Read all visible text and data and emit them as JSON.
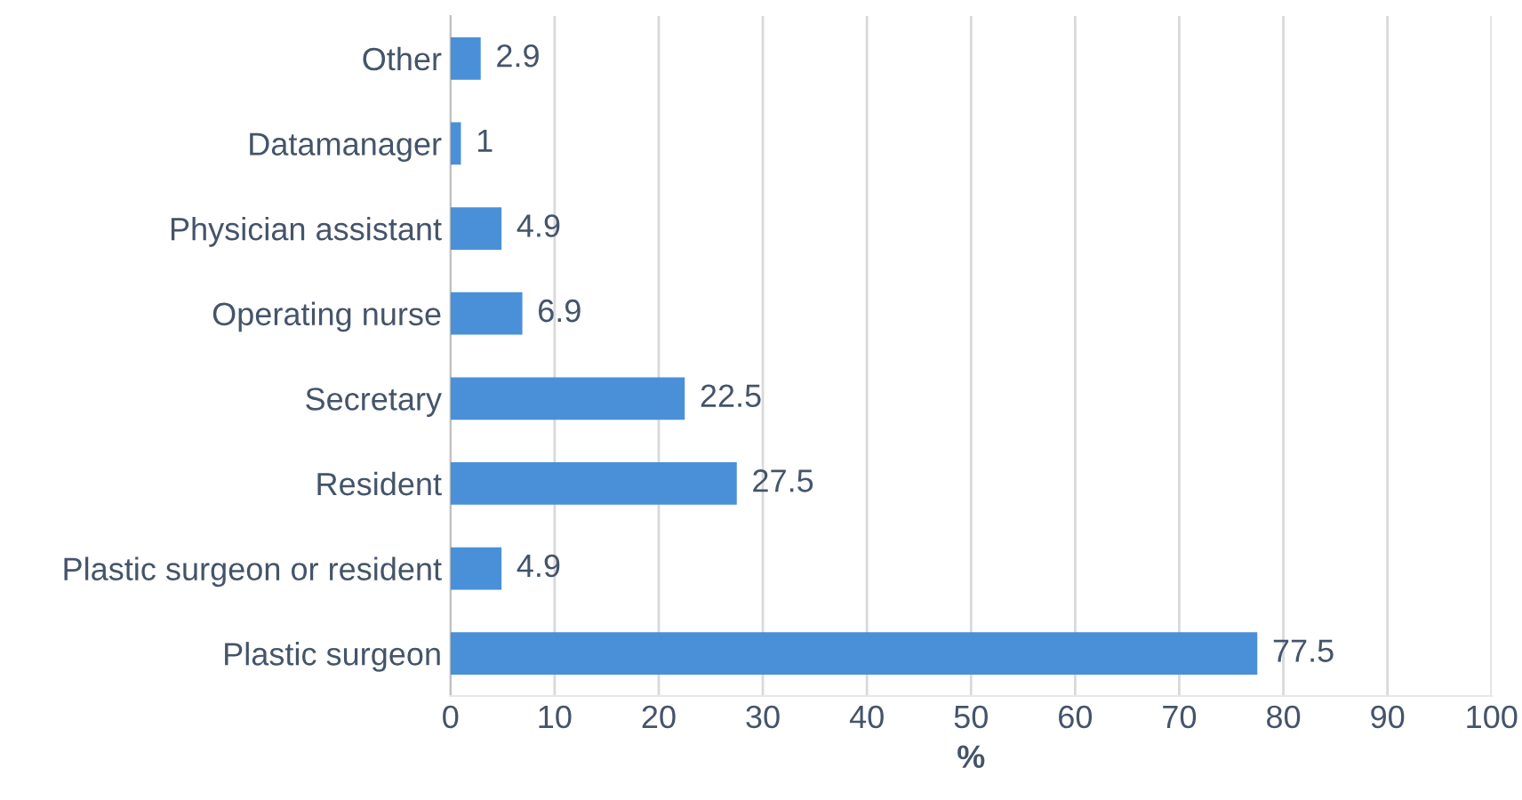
{
  "chart_data": {
    "type": "bar",
    "orientation": "horizontal",
    "xlabel": "%",
    "categories": [
      "Other",
      "Datamanager",
      "Physician assistant",
      "Operating nurse",
      "Secretary",
      "Resident",
      "Plastic surgeon or resident",
      "Plastic surgeon"
    ],
    "values": [
      2.9,
      1,
      4.9,
      6.9,
      22.5,
      27.5,
      4.9,
      77.5
    ],
    "color": "#4a90d9",
    "xlim": [
      0,
      100
    ],
    "xticks": [
      0,
      10,
      20,
      30,
      40,
      50,
      60,
      70,
      80,
      90,
      100
    ],
    "grid": "x",
    "data_labels": true
  }
}
